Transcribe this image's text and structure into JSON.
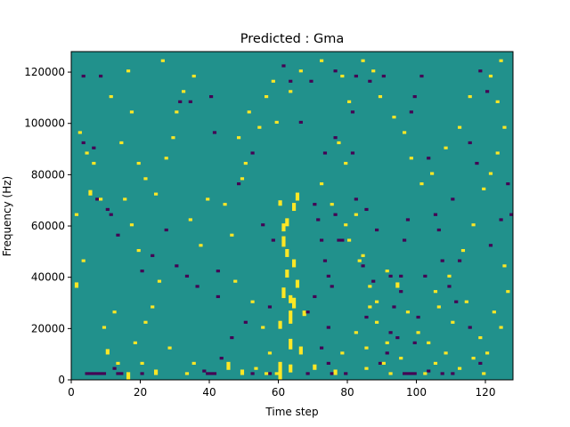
{
  "chart_data": {
    "type": "heatmap",
    "title": "Predicted : Gma",
    "xlabel": "Time step",
    "ylabel": "Frequency (Hz)",
    "xlim": [
      0,
      128
    ],
    "ylim": [
      0,
      128000
    ],
    "x_ticks": [
      0,
      20,
      40,
      60,
      80,
      100,
      120
    ],
    "y_ticks": [
      0,
      20000,
      40000,
      60000,
      80000,
      100000,
      120000
    ],
    "value_levels": [
      -1,
      0,
      1
    ],
    "colors": {
      "-1": "#440154",
      "0": "#21918c",
      "1": "#fde725"
    },
    "background_value": 0,
    "grid": false,
    "bins": {
      "time_steps": 128,
      "frequency_bins": 128,
      "bin_width_hz": 1000
    },
    "cells": [
      [
        60,
        20,
        3,
        1
      ],
      [
        60,
        0,
        7,
        1
      ],
      [
        61,
        52,
        4,
        1
      ],
      [
        61,
        32,
        4,
        1
      ],
      [
        62,
        48,
        3,
        1
      ],
      [
        62,
        40,
        3,
        1
      ],
      [
        63,
        30,
        3,
        1
      ],
      [
        63,
        12,
        4,
        1
      ],
      [
        64,
        66,
        3,
        1
      ],
      [
        64,
        44,
        3,
        1
      ],
      [
        64,
        28,
        4,
        1
      ],
      [
        62,
        60,
        3,
        1
      ],
      [
        63,
        22,
        5,
        1
      ],
      [
        65,
        70,
        3,
        1
      ],
      [
        66,
        10,
        3,
        1
      ],
      [
        65,
        36,
        3,
        1
      ],
      [
        67,
        25,
        2,
        1
      ],
      [
        60,
        68,
        2,
        1
      ],
      [
        61,
        58,
        3,
        1
      ],
      [
        63,
        3,
        3,
        1
      ],
      [
        4,
        2,
        1,
        -1
      ],
      [
        5,
        2,
        1,
        -1
      ],
      [
        6,
        2,
        1,
        -1
      ],
      [
        7,
        2,
        1,
        -1
      ],
      [
        8,
        2,
        1,
        -1
      ],
      [
        9,
        2,
        1,
        -1
      ],
      [
        12,
        4,
        1,
        -1
      ],
      [
        13,
        2,
        1,
        -1
      ],
      [
        14,
        2,
        1,
        -1
      ],
      [
        20,
        2,
        1,
        -1
      ],
      [
        38,
        3,
        1,
        -1
      ],
      [
        39,
        2,
        1,
        -1
      ],
      [
        40,
        2,
        1,
        -1
      ],
      [
        41,
        2,
        1,
        -1
      ],
      [
        52,
        2,
        1,
        -1
      ],
      [
        57,
        2,
        1,
        -1
      ],
      [
        68,
        2,
        1,
        -1
      ],
      [
        79,
        2,
        1,
        -1
      ],
      [
        96,
        2,
        1,
        -1
      ],
      [
        97,
        2,
        1,
        -1
      ],
      [
        98,
        2,
        1,
        -1
      ],
      [
        99,
        2,
        1,
        -1
      ],
      [
        103,
        3,
        1,
        -1
      ],
      [
        107,
        2,
        1,
        -1
      ],
      [
        110,
        2,
        1,
        -1
      ],
      [
        6,
        90,
        1,
        -1
      ],
      [
        3,
        92,
        1,
        -1
      ],
      [
        3,
        118,
        1,
        -1
      ],
      [
        8,
        118,
        1,
        -1
      ],
      [
        31,
        108,
        1,
        -1
      ],
      [
        34,
        108,
        1,
        -1
      ],
      [
        40,
        110,
        1,
        -1
      ],
      [
        11,
        64,
        1,
        -1
      ],
      [
        10,
        66,
        1,
        -1
      ],
      [
        7,
        70,
        1,
        -1
      ],
      [
        13,
        56,
        1,
        -1
      ],
      [
        23,
        48,
        1,
        -1
      ],
      [
        27,
        58,
        1,
        -1
      ],
      [
        20,
        42,
        1,
        -1
      ],
      [
        30,
        44,
        1,
        -1
      ],
      [
        33,
        40,
        1,
        -1
      ],
      [
        36,
        36,
        1,
        -1
      ],
      [
        42,
        42,
        1,
        -1
      ],
      [
        41,
        96,
        1,
        -1
      ],
      [
        48,
        76,
        1,
        -1
      ],
      [
        52,
        88,
        1,
        -1
      ],
      [
        55,
        60,
        1,
        -1
      ],
      [
        58,
        54,
        1,
        -1
      ],
      [
        57,
        28,
        1,
        -1
      ],
      [
        50,
        22,
        1,
        -1
      ],
      [
        46,
        16,
        1,
        -1
      ],
      [
        43,
        8,
        1,
        -1
      ],
      [
        42,
        32,
        1,
        -1
      ],
      [
        61,
        122,
        1,
        -1
      ],
      [
        63,
        116,
        1,
        -1
      ],
      [
        70,
        68,
        1,
        -1
      ],
      [
        71,
        62,
        1,
        -1
      ],
      [
        72,
        54,
        1,
        -1
      ],
      [
        73,
        46,
        1,
        -1
      ],
      [
        74,
        40,
        1,
        -1
      ],
      [
        75,
        36,
        1,
        -1
      ],
      [
        70,
        32,
        1,
        -1
      ],
      [
        68,
        26,
        1,
        -1
      ],
      [
        74,
        20,
        1,
        -1
      ],
      [
        72,
        12,
        1,
        -1
      ],
      [
        74,
        6,
        1,
        -1
      ],
      [
        75,
        2,
        1,
        -1
      ],
      [
        76,
        64,
        1,
        -1
      ],
      [
        77,
        54,
        1,
        -1
      ],
      [
        78,
        54,
        1,
        -1
      ],
      [
        81,
        88,
        1,
        -1
      ],
      [
        82,
        70,
        1,
        -1
      ],
      [
        84,
        44,
        1,
        -1
      ],
      [
        87,
        38,
        1,
        -1
      ],
      [
        85,
        24,
        1,
        -1
      ],
      [
        89,
        6,
        1,
        -1
      ],
      [
        91,
        10,
        1,
        -1
      ],
      [
        92,
        18,
        1,
        -1
      ],
      [
        92,
        40,
        1,
        -1
      ],
      [
        93,
        28,
        1,
        -1
      ],
      [
        95,
        34,
        1,
        -1
      ],
      [
        96,
        54,
        1,
        -1
      ],
      [
        97,
        62,
        1,
        -1
      ],
      [
        98,
        104,
        1,
        -1
      ],
      [
        99,
        110,
        1,
        -1
      ],
      [
        101,
        118,
        1,
        -1
      ],
      [
        103,
        86,
        1,
        -1
      ],
      [
        107,
        46,
        1,
        -1
      ],
      [
        111,
        30,
        1,
        -1
      ],
      [
        115,
        20,
        1,
        -1
      ],
      [
        118,
        6,
        1,
        -1
      ],
      [
        121,
        52,
        1,
        -1
      ],
      [
        124,
        62,
        1,
        -1
      ],
      [
        126,
        76,
        1,
        -1
      ],
      [
        127,
        64,
        1,
        -1
      ],
      [
        120,
        112,
        1,
        -1
      ],
      [
        118,
        120,
        1,
        -1
      ],
      [
        117,
        84,
        1,
        -1
      ],
      [
        115,
        92,
        1,
        -1
      ],
      [
        110,
        70,
        1,
        -1
      ],
      [
        106,
        58,
        1,
        -1
      ],
      [
        102,
        40,
        1,
        -1
      ],
      [
        95,
        40,
        1,
        -1
      ],
      [
        94,
        16,
        1,
        -1
      ],
      [
        99,
        14,
        1,
        -1
      ],
      [
        100,
        24,
        1,
        -1
      ],
      [
        105,
        64,
        1,
        -1
      ],
      [
        112,
        46,
        1,
        -1
      ],
      [
        109,
        36,
        1,
        -1
      ],
      [
        69,
        116,
        1,
        -1
      ],
      [
        76,
        120,
        1,
        -1
      ],
      [
        82,
        118,
        1,
        -1
      ],
      [
        86,
        116,
        1,
        -1
      ],
      [
        90,
        118,
        1,
        -1
      ],
      [
        81,
        104,
        1,
        -1
      ],
      [
        66,
        100,
        1,
        -1
      ],
      [
        73,
        88,
        1,
        -1
      ],
      [
        76,
        94,
        1,
        -1
      ],
      [
        85,
        66,
        1,
        -1
      ],
      [
        88,
        58,
        1,
        -1
      ],
      [
        10,
        10,
        2,
        1
      ],
      [
        13,
        6,
        1,
        1
      ],
      [
        16,
        0,
        3,
        1
      ],
      [
        20,
        6,
        1,
        1
      ],
      [
        24,
        2,
        2,
        1
      ],
      [
        28,
        12,
        1,
        1
      ],
      [
        33,
        2,
        1,
        1
      ],
      [
        35,
        6,
        1,
        1
      ],
      [
        45,
        4,
        3,
        1
      ],
      [
        49,
        2,
        2,
        1
      ],
      [
        53,
        4,
        1,
        1
      ],
      [
        56,
        2,
        1,
        1
      ],
      [
        59,
        2,
        1,
        1
      ],
      [
        70,
        4,
        2,
        1
      ],
      [
        76,
        2,
        2,
        1
      ],
      [
        85,
        4,
        1,
        1
      ],
      [
        90,
        6,
        1,
        1
      ],
      [
        92,
        2,
        1,
        1
      ],
      [
        102,
        2,
        1,
        1
      ],
      [
        105,
        6,
        1,
        1
      ],
      [
        108,
        10,
        1,
        1
      ],
      [
        112,
        4,
        1,
        1
      ],
      [
        116,
        8,
        1,
        1
      ],
      [
        119,
        2,
        1,
        1
      ],
      [
        5,
        72,
        2,
        1
      ],
      [
        8,
        70,
        1,
        1
      ],
      [
        1,
        64,
        1,
        1
      ],
      [
        3,
        46,
        1,
        1
      ],
      [
        1,
        36,
        2,
        1
      ],
      [
        2,
        96,
        1,
        1
      ],
      [
        4,
        88,
        1,
        1
      ],
      [
        6,
        84,
        1,
        1
      ],
      [
        9,
        20,
        1,
        1
      ],
      [
        12,
        26,
        1,
        1
      ],
      [
        18,
        14,
        1,
        1
      ],
      [
        21,
        22,
        1,
        1
      ],
      [
        23,
        28,
        1,
        1
      ],
      [
        25,
        38,
        1,
        1
      ],
      [
        19,
        50,
        1,
        1
      ],
      [
        17,
        60,
        1,
        1
      ],
      [
        15,
        70,
        1,
        1
      ],
      [
        21,
        78,
        1,
        1
      ],
      [
        24,
        72,
        1,
        1
      ],
      [
        27,
        86,
        1,
        1
      ],
      [
        29,
        94,
        1,
        1
      ],
      [
        30,
        104,
        1,
        1
      ],
      [
        32,
        112,
        1,
        1
      ],
      [
        35,
        118,
        1,
        1
      ],
      [
        26,
        124,
        1,
        1
      ],
      [
        16,
        120,
        1,
        1
      ],
      [
        11,
        110,
        1,
        1
      ],
      [
        14,
        92,
        1,
        1
      ],
      [
        17,
        104,
        1,
        1
      ],
      [
        19,
        84,
        1,
        1
      ],
      [
        37,
        52,
        1,
        1
      ],
      [
        34,
        62,
        1,
        1
      ],
      [
        39,
        70,
        1,
        1
      ],
      [
        44,
        68,
        1,
        1
      ],
      [
        46,
        56,
        1,
        1
      ],
      [
        47,
        38,
        1,
        1
      ],
      [
        52,
        30,
        1,
        1
      ],
      [
        55,
        20,
        1,
        1
      ],
      [
        57,
        10,
        1,
        1
      ],
      [
        54,
        98,
        1,
        1
      ],
      [
        51,
        104,
        1,
        1
      ],
      [
        56,
        110,
        1,
        1
      ],
      [
        59,
        100,
        1,
        1
      ],
      [
        48,
        94,
        1,
        1
      ],
      [
        50,
        84,
        1,
        1
      ],
      [
        49,
        78,
        1,
        1
      ],
      [
        58,
        116,
        1,
        1
      ],
      [
        63,
        112,
        1,
        1
      ],
      [
        66,
        120,
        1,
        1
      ],
      [
        72,
        124,
        1,
        1
      ],
      [
        78,
        118,
        1,
        1
      ],
      [
        80,
        108,
        1,
        1
      ],
      [
        77,
        92,
        1,
        1
      ],
      [
        79,
        84,
        1,
        1
      ],
      [
        72,
        76,
        1,
        1
      ],
      [
        75,
        68,
        1,
        1
      ],
      [
        79,
        60,
        1,
        1
      ],
      [
        83,
        46,
        1,
        1
      ],
      [
        86,
        36,
        1,
        1
      ],
      [
        88,
        30,
        1,
        1
      ],
      [
        91,
        42,
        1,
        1
      ],
      [
        94,
        36,
        2,
        1
      ],
      [
        97,
        26,
        1,
        1
      ],
      [
        100,
        18,
        1,
        1
      ],
      [
        103,
        14,
        1,
        1
      ],
      [
        106,
        28,
        1,
        1
      ],
      [
        109,
        40,
        1,
        1
      ],
      [
        113,
        50,
        1,
        1
      ],
      [
        116,
        60,
        1,
        1
      ],
      [
        119,
        74,
        1,
        1
      ],
      [
        121,
        80,
        1,
        1
      ],
      [
        123,
        88,
        1,
        1
      ],
      [
        125,
        98,
        1,
        1
      ],
      [
        123,
        108,
        1,
        1
      ],
      [
        121,
        118,
        1,
        1
      ],
      [
        124,
        124,
        1,
        1
      ],
      [
        115,
        110,
        1,
        1
      ],
      [
        112,
        98,
        1,
        1
      ],
      [
        108,
        90,
        1,
        1
      ],
      [
        104,
        80,
        1,
        1
      ],
      [
        101,
        76,
        1,
        1
      ],
      [
        98,
        86,
        1,
        1
      ],
      [
        96,
        96,
        1,
        1
      ],
      [
        93,
        102,
        1,
        1
      ],
      [
        89,
        110,
        1,
        1
      ],
      [
        87,
        120,
        1,
        1
      ],
      [
        84,
        124,
        1,
        1
      ],
      [
        82,
        64,
        1,
        1
      ],
      [
        80,
        54,
        1,
        1
      ],
      [
        84,
        48,
        1,
        1
      ],
      [
        86,
        28,
        1,
        1
      ],
      [
        82,
        18,
        1,
        1
      ],
      [
        78,
        10,
        1,
        1
      ],
      [
        85,
        12,
        1,
        1
      ],
      [
        88,
        22,
        1,
        1
      ],
      [
        91,
        14,
        1,
        1
      ],
      [
        95,
        8,
        1,
        1
      ],
      [
        105,
        34,
        1,
        1
      ],
      [
        110,
        22,
        1,
        1
      ],
      [
        114,
        30,
        1,
        1
      ],
      [
        118,
        16,
        1,
        1
      ],
      [
        122,
        26,
        1,
        1
      ],
      [
        125,
        44,
        1,
        1
      ],
      [
        126,
        34,
        1,
        1
      ],
      [
        124,
        20,
        1,
        1
      ],
      [
        120,
        10,
        1,
        1
      ]
    ]
  },
  "icons": {
    "tick-mark": "short-line"
  }
}
